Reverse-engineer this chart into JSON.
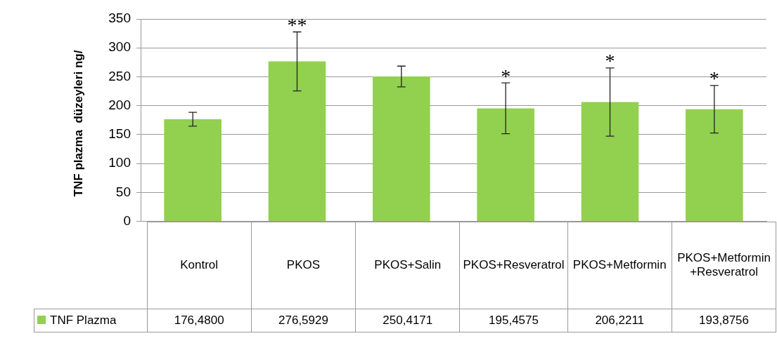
{
  "chart_data": {
    "type": "bar",
    "ylabel": "TNF plazma  düzeyleri ng/",
    "categories": [
      "Kontrol",
      "PKOS",
      "PKOS+Salin",
      "PKOS+Resveratrol",
      "PKOS+Metformin",
      "PKOS+Metformin +Resveratrol"
    ],
    "series": [
      {
        "name": "TNF Plazma",
        "color": "#92d050",
        "values": [
          176.48,
          276.5929,
          250.4171,
          195.4575,
          206.2211,
          193.8756
        ],
        "errors": [
          12,
          51,
          18,
          44,
          59,
          41
        ],
        "value_labels": [
          "176,4800",
          "276,5929",
          "250,4171",
          "195,4575",
          "206,2211",
          "193,8756"
        ]
      }
    ],
    "ylim": [
      0,
      350
    ],
    "yticks": [
      0,
      50,
      100,
      150,
      200,
      250,
      300,
      350
    ],
    "grid": "y",
    "legend": "bottom",
    "annotations": [
      {
        "text": "**",
        "x": "PKOS",
        "y": 276.5929
      },
      {
        "text": "*",
        "x": "PKOS+Resveratrol",
        "y": 195.4575
      },
      {
        "text": "*",
        "x": "PKOS+Metformin",
        "y": 206.2211
      },
      {
        "text": "*",
        "x": "PKOS+Metformin +Resveratrol",
        "y": 193.8756
      }
    ]
  }
}
